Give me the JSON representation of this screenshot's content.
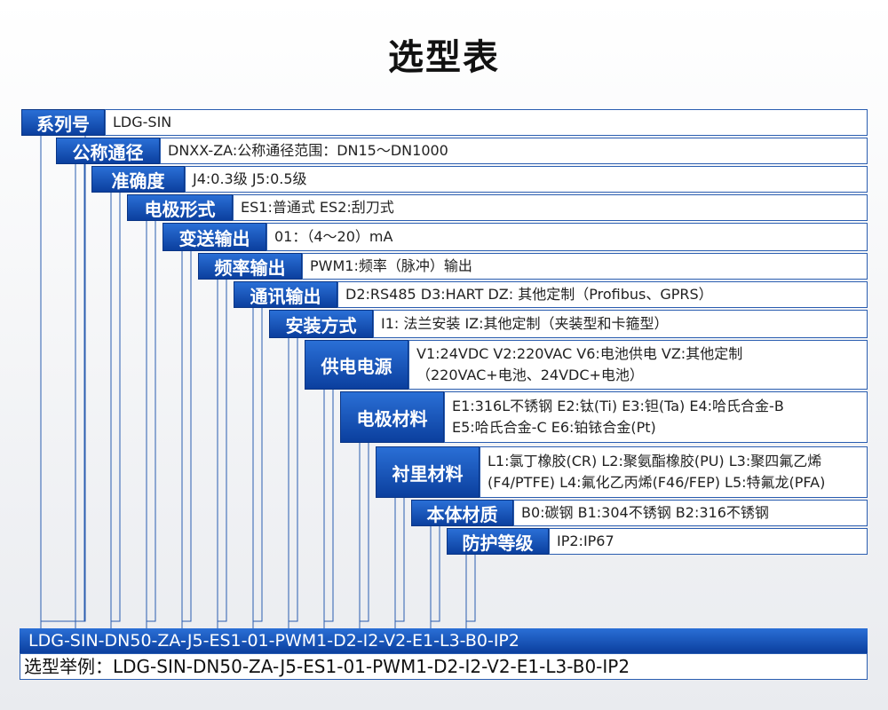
{
  "title": "选型表",
  "rows": [
    {
      "label": "系列号",
      "lines": [
        "LDG-SIN"
      ]
    },
    {
      "label": "公称通径",
      "lines": [
        "DNXX-ZA:公称通径范围：DN15～DN1000"
      ]
    },
    {
      "label": "准确度",
      "lines": [
        "J4:0.3级 J5:0.5级"
      ]
    },
    {
      "label": "电极形式",
      "lines": [
        "ES1:普通式 ES2:刮刀式"
      ]
    },
    {
      "label": "变送输出",
      "lines": [
        "01：（4～20）mA"
      ]
    },
    {
      "label": "频率输出",
      "lines": [
        "PWM1:频率（脉冲）输出"
      ]
    },
    {
      "label": "通讯输出",
      "lines": [
        "D2:RS485 D3:HART DZ: 其他定制（Profibus、GPRS）"
      ]
    },
    {
      "label": "安装方式",
      "lines": [
        "I1: 法兰安装 IZ:其他定制（夹装型和卡箍型）"
      ]
    },
    {
      "label": "供电电源",
      "lines": [
        "V1:24VDC V2:220VAC V6:电池供电 VZ:其他定制",
        "（220VAC+电池、24VDC+电池）"
      ]
    },
    {
      "label": "电极材料",
      "lines": [
        "E1:316L不锈钢 E2:钛(Ti) E3:钽(Ta) E4:哈氏合金-B",
        "E5:哈氏合金-C E6:铂铱合金(Pt)"
      ]
    },
    {
      "label": "衬里材料",
      "lines": [
        "L1:氯丁橡胶(CR) L2:聚氨酯橡胶(PU) L3:聚四氟乙烯",
        "(F4/PTFE) L4:氟化乙丙烯(F46/FEP) L5:特氟龙(PFA)"
      ]
    },
    {
      "label": "本体材质",
      "lines": [
        "B0:碳钢 B1:304不锈钢 B2:316不锈钢"
      ]
    },
    {
      "label": "防护等级",
      "lines": [
        "IP2:IP67"
      ]
    }
  ],
  "code": "LDG-SIN-DN50-ZA-J5-ES1-01-PWM1-D2-I2-V2-E1-L3-B0-IP2",
  "example": "选型举例：LDG-SIN-DN50-ZA-J5-ES1-01-PWM1-D2-I2-V2-E1-L3-B0-IP2"
}
